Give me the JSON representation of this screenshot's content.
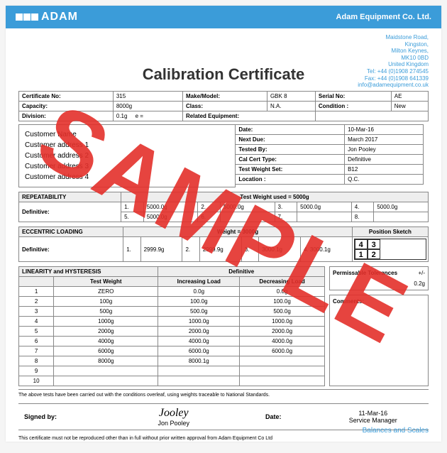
{
  "header": {
    "logo_text": "ADAM",
    "company": "Adam Equipment Co. Ltd."
  },
  "address": {
    "line1": "Maidstone Road,",
    "line2": "Kingston,",
    "line3": "Milton Keynes,",
    "line4": "MK10 0BD",
    "line5": "United Kingdom",
    "tel": "Tel: +44 (0)1908 274545",
    "fax": "Fax: +44 (0)1908 641339",
    "web": "info@adamequipment.co.uk"
  },
  "title": "Calibration Certificate",
  "info": {
    "cert_no_label": "Certificate No:",
    "cert_no": "315",
    "make_label": "Make/Model:",
    "make": "GBK 8",
    "serial_label": "Serial No:",
    "serial": "AE",
    "capacity_label": "Capacity:",
    "capacity": "8000g",
    "class_label": "Class:",
    "class": "N.A.",
    "condition_label": "Condition :",
    "condition": "New",
    "division_label": "Division:",
    "division": "0.1g",
    "e_label": "e =",
    "related_label": "Related Equipment:"
  },
  "customer": {
    "name": "Customer Name",
    "a1": "Customer address 1",
    "a2": "Customer address 2",
    "a3": "Customer address 3",
    "a4": "Customer address 4"
  },
  "dates": {
    "date_l": "Date:",
    "date_v": "10-Mar-16",
    "next_l": "Next Due:",
    "next_v": "March 2017",
    "tested_l": "Tested By:",
    "tested_v": "Jon Pooley",
    "cert_l": "Cal Cert Type:",
    "cert_v": "Definitive",
    "tw_l": "Test Weight Set:",
    "tw_v": "B12",
    "loc_l": "Location :",
    "loc_v": "Q.C."
  },
  "repeat": {
    "title": "REPEATABILITY",
    "tw_used": "Test Weight used = 5000g",
    "def_label": "Definitive:",
    "r1_n": "1.",
    "r1_v": "5000.0g",
    "r2_n": "2.",
    "r2_v": "5000.0g",
    "r3_n": "3.",
    "r3_v": "5000.0g",
    "r4_n": "4.",
    "r4_v": "5000.0g",
    "r5_n": "5.",
    "r5_v": "5000.0g",
    "r6_n": "6.",
    "r6_v": "",
    "r7_n": "7.",
    "r7_v": "",
    "r8_n": "8.",
    "r8_v": ""
  },
  "ecc": {
    "title": "ECCENTRIC LOADING",
    "weight": "Weight = 3000g",
    "pos_label": "Position Sketch",
    "def_label": "Definitive:",
    "c1_n": "1.",
    "c1_v": "2999.9g",
    "c2_n": "2.",
    "c2_v": "2999.9g",
    "c3_n": "3.",
    "c3_v": "3000.1g",
    "c4_n": "4.",
    "c4_v": "3000.1g",
    "p1": "4",
    "p2": "3",
    "p3": "1",
    "p4": "2"
  },
  "lin": {
    "title": "LINEARITY and HYSTERESIS",
    "def": "Definitive",
    "tw_l": "Test Weight",
    "inc_l": "Increasing Load",
    "dec_l": "Decreasing Load",
    "rows": [
      {
        "n": "1",
        "tw": "ZERO",
        "inc": "0.0g",
        "dec": "0.0g"
      },
      {
        "n": "2",
        "tw": "100g",
        "inc": "100.0g",
        "dec": "100.0g"
      },
      {
        "n": "3",
        "tw": "500g",
        "inc": "500.0g",
        "dec": "500.0g"
      },
      {
        "n": "4",
        "tw": "1000g",
        "inc": "1000.0g",
        "dec": "1000.0g"
      },
      {
        "n": "5",
        "tw": "2000g",
        "inc": "2000.0g",
        "dec": "2000.0g"
      },
      {
        "n": "6",
        "tw": "4000g",
        "inc": "4000.0g",
        "dec": "4000.0g"
      },
      {
        "n": "7",
        "tw": "6000g",
        "inc": "6000.0g",
        "dec": "6000.0g"
      },
      {
        "n": "8",
        "tw": "8000g",
        "inc": "8000.1g",
        "dec": ""
      },
      {
        "n": "9",
        "tw": "",
        "inc": "",
        "dec": ""
      },
      {
        "n": "10",
        "tw": "",
        "inc": "",
        "dec": ""
      }
    ],
    "tol_l": "Permissable Tolerances",
    "tol_pm": "+/-",
    "tol_v": "0.2g",
    "comments_l": "Comments:"
  },
  "footer1": "The above tests have been carried out with the conditions overleaf, using weights traceable to National Standards.",
  "sign": {
    "signed_l": "Signed by:",
    "name": "Jon Pooley",
    "date_l": "Date:",
    "date": "11-Mar-16",
    "role": "Service Manager"
  },
  "footer2": "This certificate must not be reproduced other than in full without prior written approval from Adam Equipment Co Ltd",
  "bottom_brand": "Balances and Scales",
  "watermark": "SAMPLE"
}
